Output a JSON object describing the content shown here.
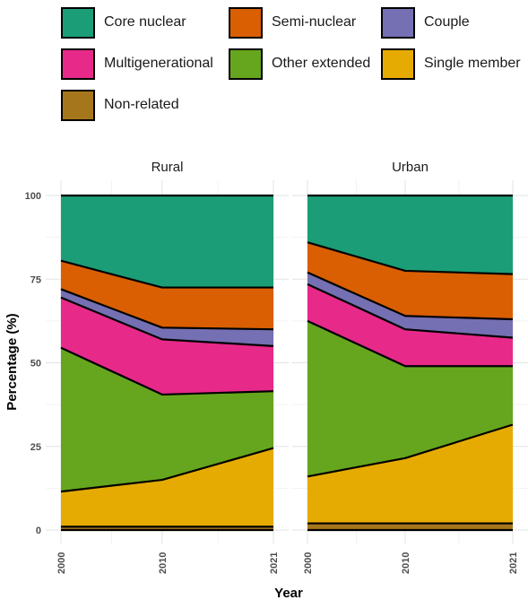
{
  "chart_data": {
    "type": "area",
    "stacked": true,
    "facets": [
      "Rural",
      "Urban"
    ],
    "x": [
      2000,
      2010,
      2021
    ],
    "xlabel": "Year",
    "ylabel": "Percentage (%)",
    "ylim": [
      0,
      100
    ],
    "yticks": [
      0,
      25,
      50,
      75,
      100
    ],
    "xticks": [
      "2000",
      "2010",
      "2021"
    ],
    "grid": true,
    "legend_position": "top",
    "series": [
      {
        "name": "Non-related",
        "color": "#A6761D",
        "values": {
          "Rural": [
            1,
            1,
            1
          ],
          "Urban": [
            2,
            2,
            2
          ]
        }
      },
      {
        "name": "Single member",
        "color": "#E6AB02",
        "values": {
          "Rural": [
            10.5,
            14,
            23.5
          ],
          "Urban": [
            14,
            19.5,
            29.5
          ]
        }
      },
      {
        "name": "Other extended",
        "color": "#66A61E",
        "values": {
          "Rural": [
            43,
            25.5,
            17
          ],
          "Urban": [
            46.5,
            27.5,
            17.5
          ]
        }
      },
      {
        "name": "Multigenerational",
        "color": "#E7298A",
        "values": {
          "Rural": [
            15,
            16.5,
            13.5
          ],
          "Urban": [
            11,
            11,
            8.5
          ]
        }
      },
      {
        "name": "Couple",
        "color": "#7570B3",
        "values": {
          "Rural": [
            2.5,
            3.5,
            5
          ],
          "Urban": [
            3.5,
            4,
            5.5
          ]
        }
      },
      {
        "name": "Semi-nuclear",
        "color": "#D95F02",
        "values": {
          "Rural": [
            8.5,
            12,
            12.5
          ],
          "Urban": [
            9,
            13.5,
            13.5
          ]
        }
      },
      {
        "name": "Core nuclear",
        "color": "#1B9E77",
        "values": {
          "Rural": [
            19.5,
            27.5,
            27.5
          ],
          "Urban": [
            14,
            22.5,
            23.5
          ]
        }
      }
    ],
    "legend_order": [
      "Core nuclear",
      "Semi-nuclear",
      "Couple",
      "Multigenerational",
      "Other extended",
      "Single member",
      "Non-related"
    ]
  }
}
